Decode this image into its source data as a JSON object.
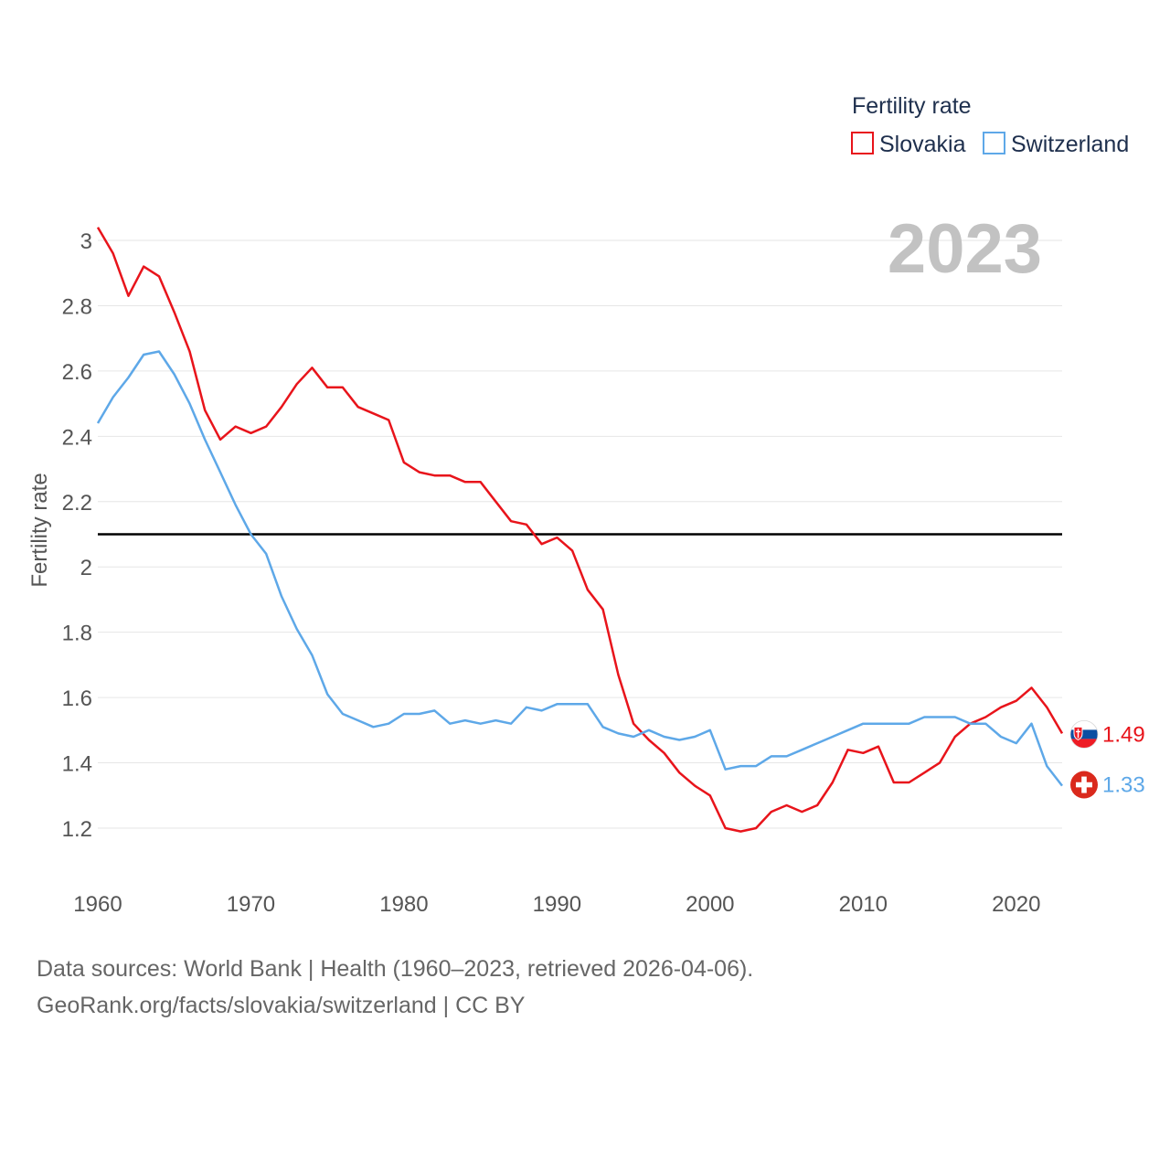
{
  "legend": {
    "title": "Fertility rate"
  },
  "year_label": "2023",
  "footer": {
    "line1": "Data sources: World Bank | Health (1960–2023, retrieved 2026-04-06).",
    "line2": "GeoRank.org/facts/slovakia/switzerland | CC BY"
  },
  "chart_data": {
    "type": "line",
    "title": "Fertility rate",
    "xlabel": "",
    "ylabel": "Fertility rate",
    "xlim": [
      1960,
      2023
    ],
    "ylim": [
      1.0,
      3.1
    ],
    "x_ticks": [
      1960,
      1970,
      1980,
      1990,
      2000,
      2010,
      2020
    ],
    "y_ticks": [
      1.2,
      1.4,
      1.6,
      1.8,
      2,
      2.2,
      2.4,
      2.6,
      2.8,
      3
    ],
    "reference_line": {
      "y": 2.1,
      "color": "#000000"
    },
    "x": [
      1960,
      1961,
      1962,
      1963,
      1964,
      1965,
      1966,
      1967,
      1968,
      1969,
      1970,
      1971,
      1972,
      1973,
      1974,
      1975,
      1976,
      1977,
      1978,
      1979,
      1980,
      1981,
      1982,
      1983,
      1984,
      1985,
      1986,
      1987,
      1988,
      1989,
      1990,
      1991,
      1992,
      1993,
      1994,
      1995,
      1996,
      1997,
      1998,
      1999,
      2000,
      2001,
      2002,
      2003,
      2004,
      2005,
      2006,
      2007,
      2008,
      2009,
      2010,
      2011,
      2012,
      2013,
      2014,
      2015,
      2016,
      2017,
      2018,
      2019,
      2020,
      2021,
      2022,
      2023
    ],
    "series": [
      {
        "name": "Slovakia",
        "color": "#e8141b",
        "end_label": "1.49",
        "flag": "slovakia",
        "values": [
          3.04,
          2.96,
          2.83,
          2.92,
          2.89,
          2.78,
          2.66,
          2.48,
          2.39,
          2.43,
          2.41,
          2.43,
          2.49,
          2.56,
          2.61,
          2.55,
          2.55,
          2.49,
          2.47,
          2.45,
          2.32,
          2.29,
          2.28,
          2.28,
          2.26,
          2.26,
          2.2,
          2.14,
          2.13,
          2.07,
          2.09,
          2.05,
          1.93,
          1.87,
          1.67,
          1.52,
          1.47,
          1.43,
          1.37,
          1.33,
          1.3,
          1.2,
          1.19,
          1.2,
          1.25,
          1.27,
          1.25,
          1.27,
          1.34,
          1.44,
          1.43,
          1.45,
          1.34,
          1.34,
          1.37,
          1.4,
          1.48,
          1.52,
          1.54,
          1.57,
          1.59,
          1.63,
          1.57,
          1.49
        ]
      },
      {
        "name": "Switzerland",
        "color": "#5ea8e8",
        "end_label": "1.33",
        "flag": "switzerland",
        "values": [
          2.44,
          2.52,
          2.58,
          2.65,
          2.66,
          2.59,
          2.5,
          2.39,
          2.29,
          2.19,
          2.1,
          2.04,
          1.91,
          1.81,
          1.73,
          1.61,
          1.55,
          1.53,
          1.51,
          1.52,
          1.55,
          1.55,
          1.56,
          1.52,
          1.53,
          1.52,
          1.53,
          1.52,
          1.57,
          1.56,
          1.58,
          1.58,
          1.58,
          1.51,
          1.49,
          1.48,
          1.5,
          1.48,
          1.47,
          1.48,
          1.5,
          1.38,
          1.39,
          1.39,
          1.42,
          1.42,
          1.44,
          1.46,
          1.48,
          1.5,
          1.52,
          1.52,
          1.52,
          1.52,
          1.54,
          1.54,
          1.54,
          1.52,
          1.52,
          1.48,
          1.46,
          1.52,
          1.39,
          1.33
        ]
      }
    ]
  }
}
